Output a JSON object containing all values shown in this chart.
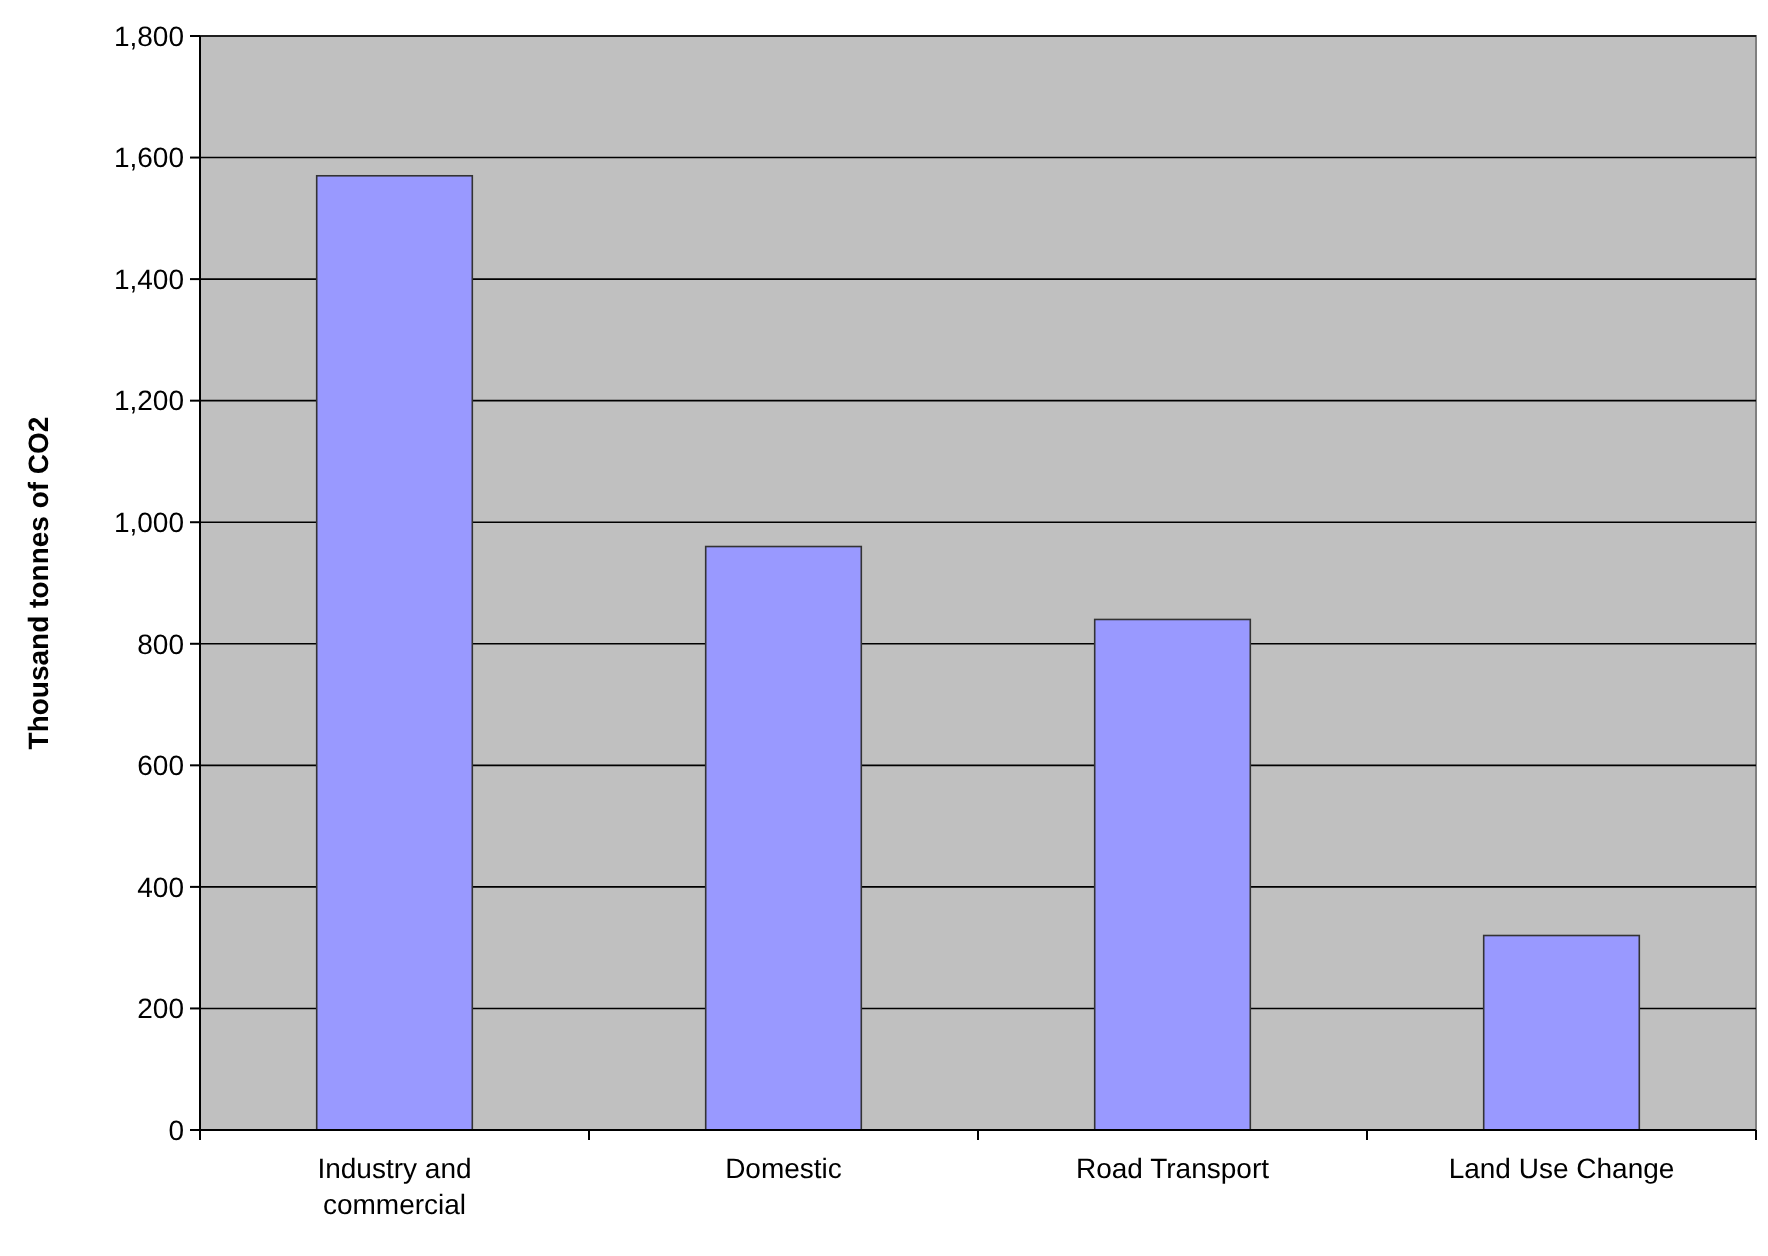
{
  "chart_data": {
    "type": "bar",
    "ylabel": "Thousand tonnes of CO2",
    "categories": [
      "Industry and commercial",
      "Domestic",
      "Road Transport",
      "Land Use Change"
    ],
    "values": [
      1570,
      960,
      840,
      320
    ],
    "color": "#9999ff",
    "ylim": [
      0,
      1800
    ],
    "yticks": [
      {
        "value": 0,
        "label": "0"
      },
      {
        "value": 200,
        "label": "200"
      },
      {
        "value": 400,
        "label": "400"
      },
      {
        "value": 600,
        "label": "600"
      },
      {
        "value": 800,
        "label": "800"
      },
      {
        "value": 1000,
        "label": "1,000"
      },
      {
        "value": 1200,
        "label": "1,200"
      },
      {
        "value": 1400,
        "label": "1,400"
      },
      {
        "value": 1600,
        "label": "1,600"
      },
      {
        "value": 1800,
        "label": "1,800"
      }
    ],
    "grid": "y"
  }
}
